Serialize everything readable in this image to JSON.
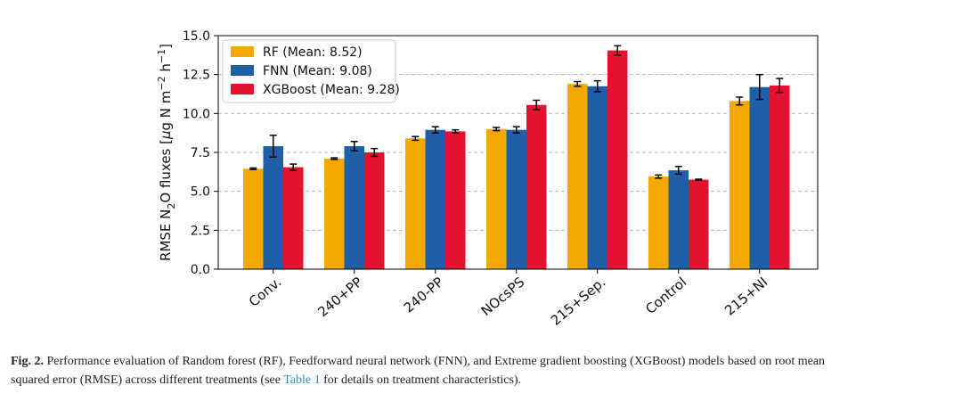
{
  "chart_data": {
    "type": "bar",
    "ylabel_parts": {
      "a": "RMSE N",
      "sub": "2",
      "b": "O fluxes [",
      "mu": "μ",
      "c": "g N m",
      "sup1": "−2",
      "d": " h",
      "sup2": "−1",
      "e": "]"
    },
    "ylim": [
      0,
      15
    ],
    "yticks": [
      0.0,
      2.5,
      5.0,
      7.5,
      10.0,
      12.5,
      15.0
    ],
    "ytick_labels": [
      "0.0",
      "2.5",
      "5.0",
      "7.5",
      "10.0",
      "12.5",
      "15.0"
    ],
    "grid": true,
    "legend_position": "top-left",
    "categories": [
      "Conv.",
      "240+PP",
      "240-PP",
      "NOcsPS",
      "215+Sep.",
      "Control",
      "215+NI"
    ],
    "series": [
      {
        "name": "RF (Mean: 8.52)",
        "color": "#f5a800",
        "values": [
          6.45,
          7.1,
          8.4,
          9.0,
          11.9,
          5.95,
          10.8
        ],
        "errors": [
          0.05,
          0.05,
          0.12,
          0.1,
          0.15,
          0.1,
          0.25
        ]
      },
      {
        "name": "FNN (Mean: 9.08)",
        "color": "#1f5fa8",
        "values": [
          7.9,
          7.9,
          8.95,
          8.95,
          11.75,
          6.35,
          11.7
        ],
        "errors": [
          0.7,
          0.3,
          0.2,
          0.2,
          0.35,
          0.25,
          0.8
        ]
      },
      {
        "name": "XGBoost (Mean: 9.28)",
        "color": "#e3122e",
        "values": [
          6.55,
          7.5,
          8.85,
          10.55,
          14.05,
          5.75,
          11.8
        ],
        "errors": [
          0.2,
          0.25,
          0.1,
          0.3,
          0.3,
          0.03,
          0.45
        ]
      }
    ]
  },
  "caption": {
    "label": "Fig. 2.",
    "line1": " Performance evaluation of Random forest (RF), Feedforward neural network (FNN), and Extreme gradient boosting (XGBoost) models based on root mean",
    "line2_a": "squared error (RMSE) across different treatments (see ",
    "link": "Table 1",
    "line2_b": " for details on treatment characteristics)."
  }
}
